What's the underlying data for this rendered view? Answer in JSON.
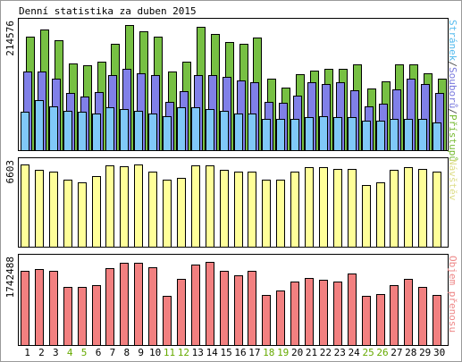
{
  "chart_data": {
    "title": "Denní statistika za duben 2015",
    "type": "bar",
    "days": [
      "1",
      "2",
      "3",
      "4",
      "5",
      "6",
      "7",
      "8",
      "9",
      "10",
      "11",
      "12",
      "13",
      "14",
      "15",
      "16",
      "17",
      "18",
      "19",
      "20",
      "21",
      "22",
      "23",
      "24",
      "25",
      "26",
      "27",
      "28",
      "29",
      "30"
    ],
    "weekend_days": [
      "4",
      "5",
      "11",
      "12",
      "18",
      "19",
      "25",
      "26"
    ],
    "weekday_label_color": "#000000",
    "weekend_label_color": "#66aa00",
    "panels": [
      {
        "id": "top",
        "max_label": "214576",
        "ymax": 214576,
        "right_labels": [
          {
            "text": "Stránek",
            "color": "#55bbee"
          },
          {
            "text": "/",
            "color": "#555555"
          },
          {
            "text": "Souborů",
            "color": "#7777dd"
          },
          {
            "text": "/",
            "color": "#555555"
          },
          {
            "text": "Přístupů",
            "color": "#77bb33"
          }
        ],
        "series": [
          {
            "name": "Přístupů",
            "color": "#77c043",
            "values": [
              194000,
              207000,
              188000,
              149000,
              146000,
              151000,
              183000,
              214576,
              204000,
              195000,
              135000,
              152000,
              211000,
              200000,
              185000,
              183000,
              193000,
              122000,
              108000,
              131000,
              136000,
              140000,
              139000,
              147000,
              106000,
              118000,
              147000,
              147000,
              132000,
              123000
            ]
          },
          {
            "name": "Souborů",
            "color": "#8080e8",
            "values": [
              135000,
              135000,
              122000,
              98000,
              92000,
              100000,
              128000,
              140000,
              132000,
              128000,
              82000,
              101000,
              128000,
              129000,
              125000,
              119000,
              117000,
              82000,
              81000,
              94000,
              117000,
              113000,
              116000,
              103000,
              75000,
              80000,
              104000,
              122000,
              113000,
              98000
            ]
          },
          {
            "name": "Stránek",
            "color": "#80c8f8",
            "values": [
              66000,
              86000,
              75000,
              68000,
              66000,
              63000,
              74000,
              71000,
              68000,
              63000,
              58000,
              73000,
              73000,
              71000,
              68000,
              63000,
              63000,
              53000,
              53000,
              53000,
              56000,
              58000,
              56000,
              56000,
              50000,
              50000,
              53000,
              53000,
              53000,
              48000
            ]
          }
        ]
      },
      {
        "id": "mid",
        "max_label": "6603",
        "ymax": 6603,
        "right_labels": [
          {
            "text": "Návštěv",
            "color": "#dddd88"
          }
        ],
        "series": [
          {
            "name": "Návštěv",
            "color": "#ffff99",
            "values": [
              6603,
              6150,
              6000,
              5350,
              5200,
              5650,
              6550,
              6450,
              6603,
              6050,
              5350,
              5500,
              6550,
              6550,
              6150,
              6050,
              6050,
              5350,
              5350,
              6050,
              6400,
              6400,
              6250,
              6250,
              4950,
              5200,
              6150,
              6400,
              6250,
              6050
            ]
          }
        ]
      },
      {
        "id": "bot",
        "max_label": "1742488",
        "ymax": 1742488,
        "right_labels": [
          {
            "text": "Objem přenosu",
            "color": "#ee8888"
          }
        ],
        "series": [
          {
            "name": "Objem přenosu",
            "color": "#f28080",
            "values": [
              1530000,
              1580000,
              1530000,
              1210000,
              1210000,
              1240000,
              1590000,
              1700000,
              1700000,
              1620000,
              1020000,
              1380000,
              1670000,
              1730000,
              1530000,
              1440000,
              1530000,
              1040000,
              1140000,
              1320000,
              1390000,
              1350000,
              1320000,
              1480000,
              1020000,
              1050000,
              1240000,
              1370000,
              1200000,
              1040000
            ]
          }
        ]
      }
    ]
  }
}
